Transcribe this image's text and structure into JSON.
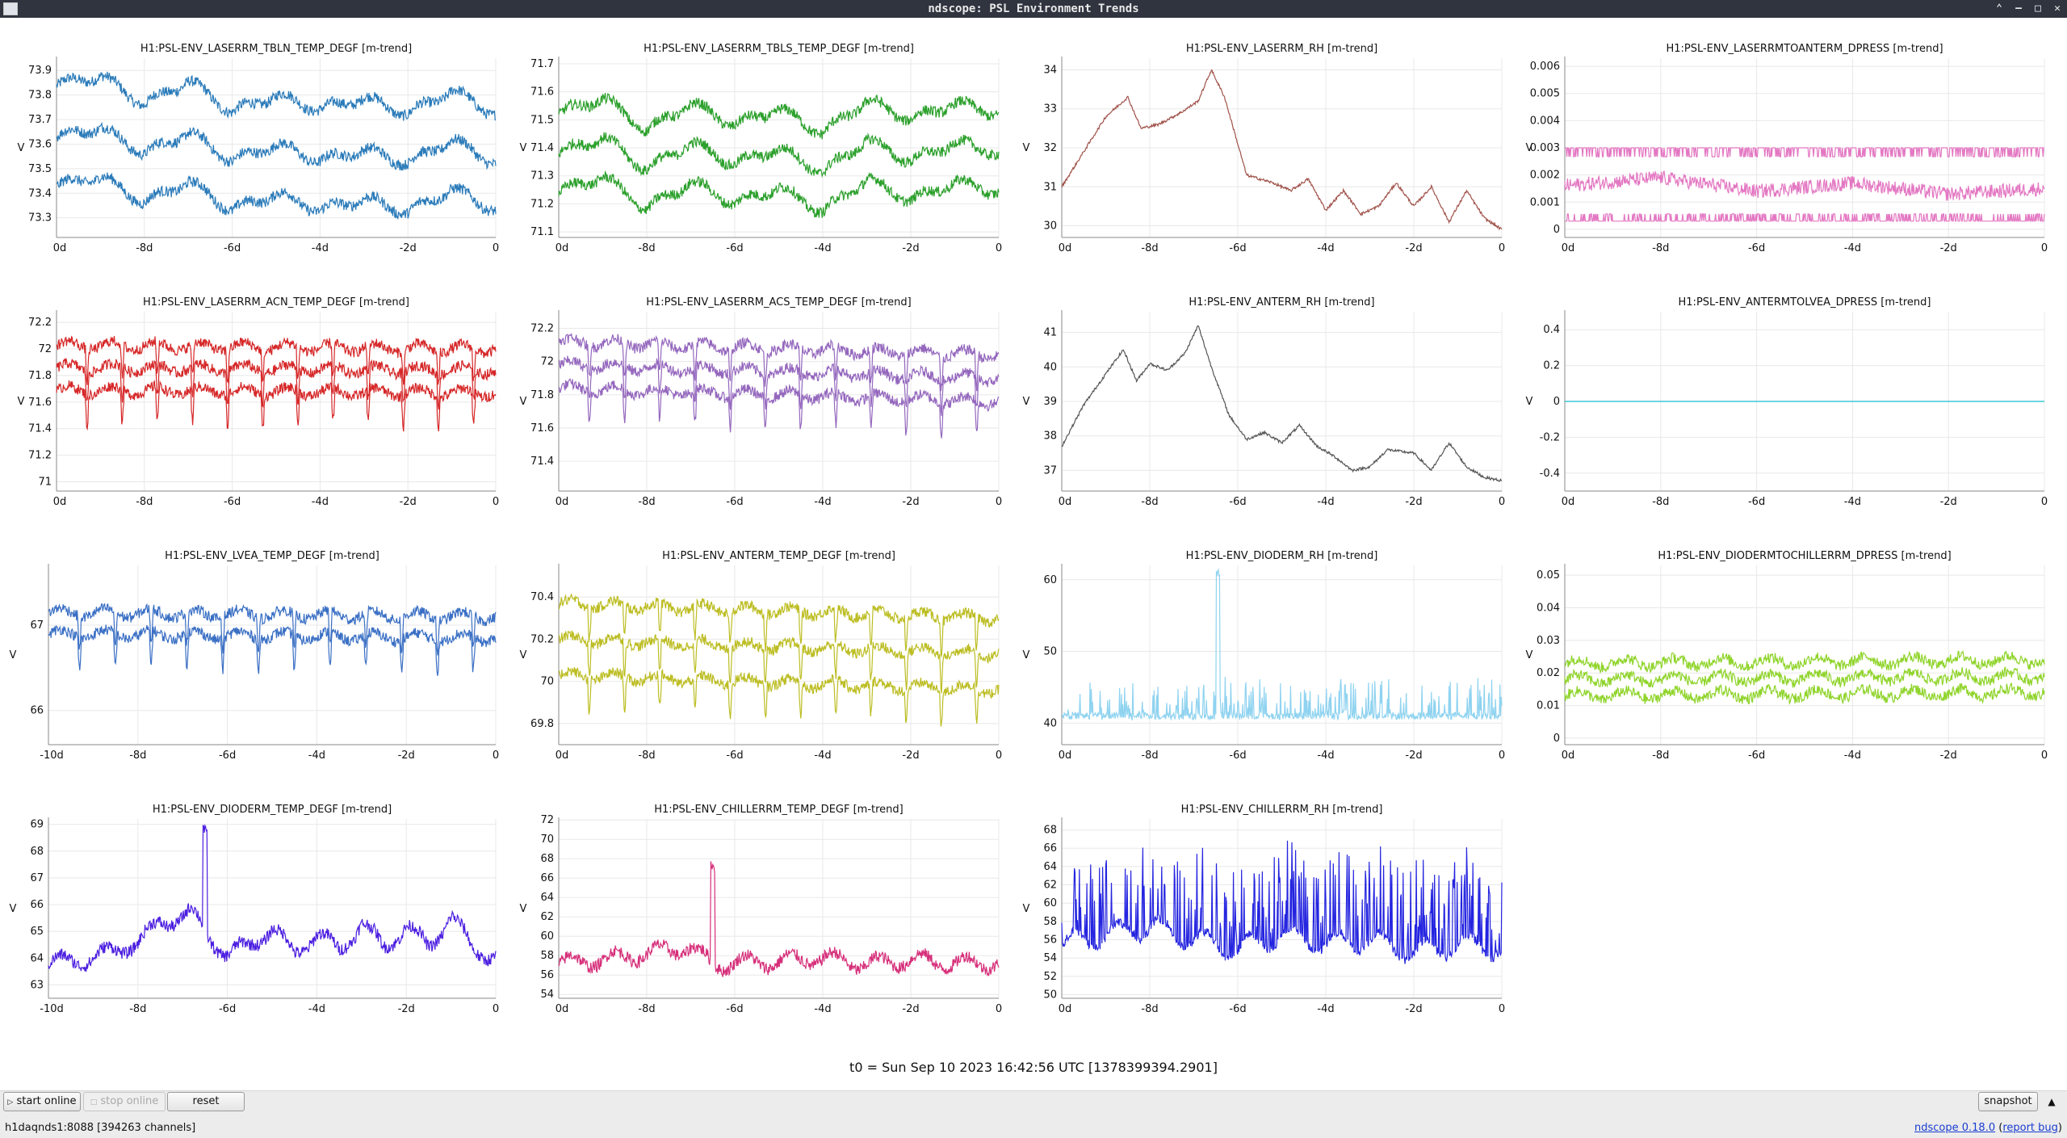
{
  "window": {
    "title": "ndscope: PSL Environment Trends"
  },
  "axis_label": "V",
  "x_ticks": [
    "0d",
    "-8d",
    "-6d",
    "-4d",
    "-2d",
    "0"
  ],
  "x_ticks_alt": [
    "-10d",
    "-8d",
    "-6d",
    "-4d",
    "-2d",
    "0"
  ],
  "t0": "t0 = Sun Sep 10 2023 16:42:56 UTC [1378399394.2901]",
  "buttons": {
    "start": "start online",
    "stop": "stop online",
    "reset": "reset",
    "snapshot": "snapshot"
  },
  "status": {
    "server": "h1daqnds1:8088  [394263 channels]",
    "version": "ndscope 0.18.0",
    "report": "report bug"
  },
  "chart_data": [
    {
      "type": "line",
      "title": "H1:PSL-ENV_LASERRM_TBLN_TEMP_DEGF [m-trend]",
      "color": "#2b7bb9",
      "style": "band3",
      "ylim": [
        73.22,
        73.95
      ],
      "yticks": [
        73.3,
        73.4,
        73.5,
        73.6,
        73.7,
        73.8,
        73.9
      ],
      "xticks": "std",
      "series": [
        {
          "name": "max",
          "x": [
            -10,
            -9,
            -8,
            -7,
            -6,
            -5,
            -4,
            -3,
            -2,
            -1,
            0
          ],
          "y": [
            73.84,
            73.88,
            73.76,
            73.86,
            73.73,
            73.8,
            73.74,
            73.79,
            73.72,
            73.82,
            73.72
          ]
        },
        {
          "name": "mean",
          "x": [
            -10,
            -9,
            -8,
            -7,
            -6,
            -5,
            -4,
            -3,
            -2,
            -1,
            0
          ],
          "y": [
            73.63,
            73.67,
            73.56,
            73.65,
            73.53,
            73.6,
            73.53,
            73.58,
            73.52,
            73.62,
            73.52
          ]
        },
        {
          "name": "min",
          "x": [
            -10,
            -9,
            -8,
            -7,
            -6,
            -5,
            -4,
            -3,
            -2,
            -1,
            0
          ],
          "y": [
            73.43,
            73.47,
            73.36,
            73.45,
            73.33,
            73.4,
            73.33,
            73.38,
            73.32,
            73.42,
            73.33
          ]
        }
      ]
    },
    {
      "type": "line",
      "title": "H1:PSL-ENV_LASERRM_TBLS_TEMP_DEGF [m-trend]",
      "color": "#2ca02c",
      "style": "band3",
      "ylim": [
        71.08,
        71.72
      ],
      "yticks": [
        71.1,
        71.2,
        71.3,
        71.4,
        71.5,
        71.6,
        71.7
      ],
      "xticks": "std",
      "series": [
        {
          "name": "max",
          "x": [
            -10,
            -9,
            -8,
            -7,
            -6,
            -5,
            -4,
            -3,
            -2,
            -1,
            0
          ],
          "y": [
            71.52,
            71.58,
            71.46,
            71.56,
            71.48,
            71.54,
            71.45,
            71.57,
            71.5,
            71.56,
            71.52
          ]
        },
        {
          "name": "mean",
          "x": [
            -10,
            -9,
            -8,
            -7,
            -6,
            -5,
            -4,
            -3,
            -2,
            -1,
            0
          ],
          "y": [
            71.38,
            71.44,
            71.32,
            71.42,
            71.34,
            71.4,
            71.31,
            71.43,
            71.35,
            71.42,
            71.38
          ]
        },
        {
          "name": "min",
          "x": [
            -10,
            -9,
            -8,
            -7,
            -6,
            -5,
            -4,
            -3,
            -2,
            -1,
            0
          ],
          "y": [
            71.24,
            71.3,
            71.18,
            71.28,
            71.2,
            71.26,
            71.17,
            71.29,
            71.21,
            71.28,
            71.24
          ]
        }
      ]
    },
    {
      "type": "line",
      "title": "H1:PSL-ENV_LASERRM_RH [m-trend]",
      "color": "#a0524a",
      "style": "band1",
      "ylim": [
        29.7,
        34.3
      ],
      "yticks": [
        30,
        31,
        32,
        33,
        34
      ],
      "xticks": "std",
      "series": [
        {
          "name": "mean",
          "x": [
            -10,
            -9.5,
            -9,
            -8.5,
            -8.2,
            -7.8,
            -7.3,
            -6.9,
            -6.6,
            -6.3,
            -5.8,
            -5.2,
            -4.8,
            -4.4,
            -4,
            -3.6,
            -3.2,
            -2.8,
            -2.4,
            -2,
            -1.6,
            -1.2,
            -0.8,
            -0.4,
            0
          ],
          "y": [
            31,
            31.9,
            32.8,
            33.3,
            32.5,
            32.6,
            32.9,
            33.2,
            34,
            33.3,
            31.3,
            31.1,
            30.9,
            31.2,
            30.4,
            30.9,
            30.3,
            30.5,
            31.1,
            30.5,
            31.0,
            30.1,
            30.9,
            30.2,
            29.9
          ]
        }
      ]
    },
    {
      "type": "line",
      "title": "H1:PSL-ENV_LASERRMTOANTERM_DPRESS [m-trend]",
      "color": "#e377c2",
      "style": "quant",
      "ylim": [
        -0.0003,
        0.0063
      ],
      "yticks": [
        0,
        0.001,
        0.002,
        0.003,
        0.004,
        0.005,
        0.006
      ],
      "xticks": "std",
      "series": [
        {
          "name": "max",
          "x": [
            -10,
            0
          ],
          "y": [
            0.003,
            0.003
          ]
        },
        {
          "name": "mean",
          "x": [
            -10,
            -8,
            -6,
            -4,
            -2,
            0
          ],
          "y": [
            0.0016,
            0.0019,
            0.0014,
            0.0017,
            0.0013,
            0.0015
          ]
        },
        {
          "name": "min",
          "x": [
            -10,
            0
          ],
          "y": [
            0.0003,
            0.0003
          ]
        }
      ]
    },
    {
      "type": "line",
      "title": "H1:PSL-ENV_LASERRM_ACN_TEMP_DEGF [m-trend]",
      "color": "#d62728",
      "style": "band3dip",
      "ylim": [
        70.93,
        72.28
      ],
      "yticks": [
        71,
        71.2,
        71.4,
        71.6,
        71.8,
        72,
        72.2
      ],
      "xticks": "std",
      "series": [
        {
          "name": "max",
          "x": [
            -10,
            0
          ],
          "y": [
            72.03,
            72.0
          ]
        },
        {
          "name": "mean",
          "x": [
            -10,
            0
          ],
          "y": [
            71.86,
            71.84
          ]
        },
        {
          "name": "min",
          "x": [
            -10,
            0
          ],
          "y": [
            71.69,
            71.67
          ]
        }
      ]
    },
    {
      "type": "line",
      "title": "H1:PSL-ENV_LASERRM_ACS_TEMP_DEGF [m-trend]",
      "color": "#9467bd",
      "style": "band3dip",
      "ylim": [
        71.22,
        72.3
      ],
      "yticks": [
        71.4,
        71.6,
        71.8,
        72,
        72.2
      ],
      "xticks": "std",
      "series": [
        {
          "name": "max",
          "x": [
            -10,
            0
          ],
          "y": [
            72.12,
            72.04
          ]
        },
        {
          "name": "mean",
          "x": [
            -10,
            0
          ],
          "y": [
            71.98,
            71.9
          ]
        },
        {
          "name": "min",
          "x": [
            -10,
            0
          ],
          "y": [
            71.84,
            71.76
          ]
        }
      ]
    },
    {
      "type": "line",
      "title": "H1:PSL-ENV_ANTERM_RH [m-trend]",
      "color": "#555555",
      "style": "band1",
      "ylim": [
        36.4,
        41.6
      ],
      "yticks": [
        37,
        38,
        39,
        40,
        41
      ],
      "xticks": "std",
      "series": [
        {
          "name": "mean",
          "x": [
            -10,
            -9.5,
            -9,
            -8.6,
            -8.3,
            -8,
            -7.6,
            -7.2,
            -6.9,
            -6.6,
            -6.2,
            -5.8,
            -5.4,
            -5,
            -4.6,
            -4.2,
            -3.8,
            -3.4,
            -3,
            -2.6,
            -2,
            -1.6,
            -1.2,
            -0.8,
            -0.4,
            0
          ],
          "y": [
            37.7,
            38.9,
            39.8,
            40.5,
            39.6,
            40.1,
            39.9,
            40.4,
            41.2,
            40.0,
            38.6,
            37.9,
            38.1,
            37.8,
            38.3,
            37.7,
            37.4,
            37.0,
            37.1,
            37.6,
            37.5,
            37.0,
            37.8,
            37.1,
            36.8,
            36.7
          ]
        }
      ]
    },
    {
      "type": "line",
      "title": "H1:PSL-ENV_ANTERMTOLVEA_DPRESS [m-trend]",
      "color": "#17becf",
      "style": "flat",
      "ylim": [
        -0.5,
        0.5
      ],
      "yticks": [
        -0.4,
        -0.2,
        0,
        0.2,
        0.4
      ],
      "xticks": "std",
      "series": [
        {
          "name": "mean",
          "x": [
            -10,
            0
          ],
          "y": [
            0,
            0
          ]
        }
      ]
    },
    {
      "type": "line",
      "title": "H1:PSL-ENV_LVEA_TEMP_DEGF [m-trend]",
      "color": "#3a6fc4",
      "style": "band2dip",
      "ylim": [
        65.6,
        67.7
      ],
      "yticks": [
        66,
        67
      ],
      "xticks": "alt",
      "series": [
        {
          "name": "max",
          "x": [
            -10,
            0
          ],
          "y": [
            67.15,
            67.1
          ]
        },
        {
          "name": "min",
          "x": [
            -10,
            0
          ],
          "y": [
            66.9,
            66.85
          ]
        }
      ]
    },
    {
      "type": "line",
      "title": "H1:PSL-ENV_ANTERM_TEMP_DEGF [m-trend]",
      "color": "#bcbd22",
      "style": "band3dip",
      "ylim": [
        69.7,
        70.55
      ],
      "yticks": [
        69.8,
        70,
        70.2,
        70.4
      ],
      "xticks": "std",
      "series": [
        {
          "name": "max",
          "x": [
            -10,
            0
          ],
          "y": [
            70.37,
            70.3
          ]
        },
        {
          "name": "mean",
          "x": [
            -10,
            0
          ],
          "y": [
            70.2,
            70.13
          ]
        },
        {
          "name": "min",
          "x": [
            -10,
            0
          ],
          "y": [
            70.03,
            69.96
          ]
        }
      ]
    },
    {
      "type": "line",
      "title": "H1:PSL-ENV_DIODERM_RH [m-trend]",
      "color": "#8fd3f0",
      "style": "spiky",
      "ylim": [
        37,
        62
      ],
      "yticks": [
        40,
        50,
        60
      ],
      "xticks": "std",
      "series": [
        {
          "name": "mean",
          "x": [
            -10,
            0
          ],
          "y": [
            41,
            41
          ]
        }
      ]
    },
    {
      "type": "line",
      "title": "H1:PSL-ENV_DIODERMTOCHILLERRM_DPRESS [m-trend]",
      "color": "#8fd42a",
      "style": "band3",
      "ylim": [
        -0.002,
        0.053
      ],
      "yticks": [
        0,
        0.01,
        0.02,
        0.03,
        0.04,
        0.05
      ],
      "xticks": "std",
      "series": [
        {
          "name": "max",
          "x": [
            -10,
            0
          ],
          "y": [
            0.023,
            0.024
          ]
        },
        {
          "name": "mean",
          "x": [
            -10,
            0
          ],
          "y": [
            0.018,
            0.019
          ]
        },
        {
          "name": "min",
          "x": [
            -10,
            0
          ],
          "y": [
            0.013,
            0.014
          ]
        }
      ]
    },
    {
      "type": "line",
      "title": "H1:PSL-ENV_DIODERM_TEMP_DEGF [m-trend]",
      "color": "#4b1ee0",
      "style": "noisy",
      "ylim": [
        62.5,
        69.2
      ],
      "yticks": [
        63,
        64,
        65,
        66,
        67,
        68,
        69
      ],
      "xticks": "alt",
      "series": [
        {
          "name": "mean",
          "x": [
            -10,
            -9,
            -8,
            -7.5,
            -6.8,
            -6.4,
            -6,
            -5.5,
            -5,
            -4.5,
            -4,
            -3.5,
            -3,
            -2.5,
            -2,
            -1.5,
            -1,
            -0.5,
            0
          ],
          "y": [
            63.8,
            64.0,
            64.6,
            65.3,
            65.7,
            64.8,
            64.1,
            64.5,
            65.1,
            64.2,
            64.9,
            64.3,
            65.3,
            64.4,
            65.2,
            64.4,
            65.6,
            64.3,
            64.1
          ]
        }
      ]
    },
    {
      "type": "line",
      "title": "H1:PSL-ENV_CHILLERRM_TEMP_DEGF [m-trend]",
      "color": "#d62f7a",
      "style": "noisy",
      "ylim": [
        53.6,
        72.1
      ],
      "yticks": [
        54,
        56,
        58,
        60,
        62,
        64,
        66,
        68,
        70,
        72
      ],
      "xticks": "std",
      "series": [
        {
          "name": "mean",
          "x": [
            -10,
            -9,
            -8,
            -7,
            -6.5,
            -6,
            -5,
            -4,
            -3,
            -2,
            -1,
            0
          ],
          "y": [
            57.2,
            57.6,
            58.2,
            58.9,
            57.0,
            57.3,
            57.4,
            57.8,
            57.1,
            57.6,
            57.2,
            57.3
          ]
        }
      ]
    },
    {
      "type": "line",
      "title": "H1:PSL-ENV_CHILLERRM_RH [m-trend]",
      "color": "#2424e0",
      "style": "spiky2",
      "ylim": [
        49.6,
        69.2
      ],
      "yticks": [
        50,
        52,
        54,
        56,
        58,
        60,
        62,
        64,
        66,
        68
      ],
      "xticks": "std",
      "series": [
        {
          "name": "mean",
          "x": [
            -10,
            -9,
            -8,
            -7,
            -6,
            -5,
            -4,
            -3,
            -2,
            -1,
            0
          ],
          "y": [
            55.5,
            56.5,
            57.5,
            56.0,
            55.0,
            56.5,
            55.5,
            56.0,
            54.5,
            55.5,
            55.0
          ]
        }
      ]
    }
  ]
}
